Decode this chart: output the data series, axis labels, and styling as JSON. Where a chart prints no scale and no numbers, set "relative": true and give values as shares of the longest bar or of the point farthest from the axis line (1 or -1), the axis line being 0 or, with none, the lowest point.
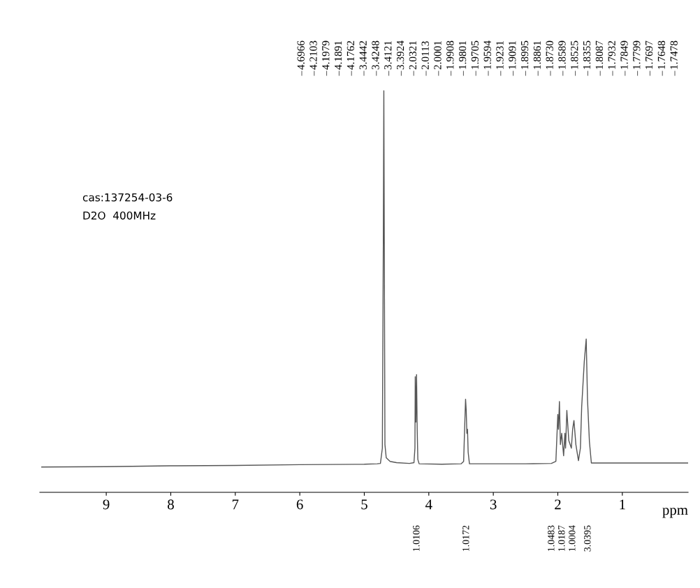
{
  "chart_data": {
    "type": "line",
    "relative": true,
    "xlabel": "ppm",
    "xlim": [
      10.03,
      -0.02
    ],
    "xticks": [
      9,
      8,
      7,
      6,
      5,
      4,
      3,
      2,
      1
    ],
    "grid": false,
    "legend": false,
    "marker": "none",
    "line_style": "solid",
    "series": [
      {
        "color": "#555555",
        "x": [
          10.0,
          9.0,
          8.0,
          7.0,
          6.0,
          5.0,
          4.8,
          4.75,
          4.72,
          4.705,
          4.697,
          4.69,
          4.68,
          4.66,
          4.6,
          4.5,
          4.3,
          4.23,
          4.215,
          4.21,
          4.2,
          4.19,
          4.18,
          4.17,
          4.15,
          3.8,
          3.5,
          3.46,
          3.445,
          3.43,
          3.42,
          3.41,
          3.4,
          3.39,
          3.37,
          3.0,
          2.5,
          2.1,
          2.03,
          2.0,
          1.99,
          1.975,
          1.96,
          1.94,
          1.91,
          1.89,
          1.88,
          1.86,
          1.83,
          1.79,
          1.77,
          1.75,
          1.72,
          1.68,
          1.65,
          1.63,
          1.59,
          1.56,
          1.54,
          1.51,
          1.48,
          1.45,
          1.2,
          0.8,
          0.3,
          -0.02
        ],
        "values": [
          0.063,
          0.064,
          0.066,
          0.067,
          0.069,
          0.07,
          0.071,
          0.072,
          0.11,
          0.625,
          1.0,
          0.625,
          0.119,
          0.086,
          0.077,
          0.074,
          0.072,
          0.074,
          0.11,
          0.288,
          0.175,
          0.293,
          0.157,
          0.082,
          0.071,
          0.07,
          0.071,
          0.077,
          0.157,
          0.232,
          0.204,
          0.147,
          0.157,
          0.1,
          0.071,
          0.071,
          0.071,
          0.072,
          0.077,
          0.194,
          0.157,
          0.226,
          0.119,
          0.147,
          0.091,
          0.147,
          0.11,
          0.204,
          0.129,
          0.11,
          0.157,
          0.179,
          0.119,
          0.079,
          0.11,
          0.213,
          0.325,
          0.382,
          0.232,
          0.126,
          0.073,
          0.073,
          0.073,
          0.073,
          0.073,
          0.073
        ]
      }
    ],
    "annotations": [
      "cas:137254-03-6",
      "D2O  400MHz",
      "4.6966",
      "4.2103",
      "4.1979",
      "4.1891",
      "4.1762",
      "3.4442",
      "3.4248",
      "3.4121",
      "3.3924",
      "2.0321",
      "2.0113",
      "2.0001",
      "1.9908",
      "1.9801",
      "1.9705",
      "1.9594",
      "1.9231",
      "1.9091",
      "1.8995",
      "1.8861",
      "1.8730",
      "1.8589",
      "1.8525",
      "1.8355",
      "1.8087",
      "1.7932",
      "1.7849",
      "1.7799",
      "1.7697",
      "1.7648",
      "1.7478",
      "1.0106",
      "1.0172",
      "1.0483",
      "1.0187",
      "1.0004",
      "3.0395"
    ]
  }
}
